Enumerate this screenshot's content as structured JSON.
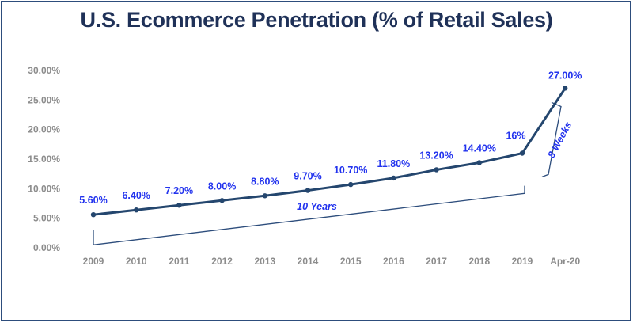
{
  "chart_data": {
    "type": "line",
    "title": "U.S. Ecommerce Penetration (% of Retail Sales)",
    "xlabel": "",
    "ylabel": "",
    "categories": [
      "2009",
      "2010",
      "2011",
      "2012",
      "2013",
      "2014",
      "2015",
      "2016",
      "2017",
      "2018",
      "2019",
      "Apr-20"
    ],
    "values": [
      5.6,
      6.4,
      7.2,
      8.0,
      8.8,
      9.7,
      10.7,
      11.8,
      13.2,
      14.4,
      16,
      27.0
    ],
    "data_labels": [
      "5.60%",
      "6.40%",
      "7.20%",
      "8.00%",
      "8.80%",
      "9.70%",
      "10.70%",
      "11.80%",
      "13.20%",
      "14.40%",
      "16%",
      "27.00%"
    ],
    "ylim": [
      0,
      30
    ],
    "yticks": [
      0,
      5,
      10,
      15,
      20,
      25,
      30
    ],
    "ytick_labels": [
      "0.00%",
      "5.00%",
      "10.00%",
      "15.00%",
      "20.00%",
      "25.00%",
      "30.00%"
    ],
    "grid": false,
    "annotations": [
      {
        "text": "10 Years",
        "from": "2009",
        "to": "2019"
      },
      {
        "text": "8 Weeks",
        "from": "2019",
        "to": "Apr-20"
      }
    ],
    "colors": {
      "line": "#24466e",
      "data_label": "#2233ee",
      "title": "#1f3158",
      "bracket": "#2d4d7c",
      "tick": "#8c8c8c"
    }
  }
}
